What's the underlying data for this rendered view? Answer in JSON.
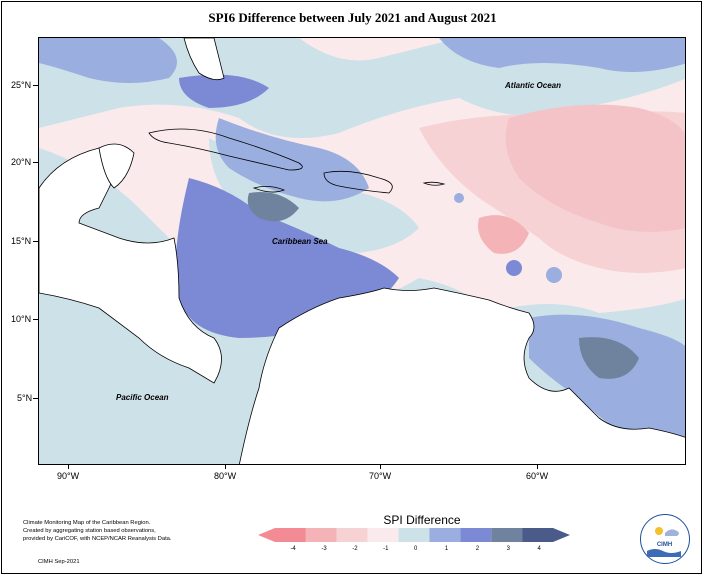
{
  "title": "SPI6 Difference between July 2021 and August 2021",
  "y_ticks": [
    "25°N",
    "20°N",
    "15°N",
    "10°N",
    "5°N"
  ],
  "x_ticks": [
    "90°W",
    "80°W",
    "70°W",
    "60°W"
  ],
  "labels": {
    "atlantic": "Atlantic Ocean",
    "caribbean": "Caribbean Sea",
    "pacific": "Pacific Ocean"
  },
  "footer": {
    "line1": "Climate Monitoring Map of the Caribbean Region.",
    "line2": "Created by aggregating station based observations,",
    "line3": "provided by CariCOF, with NCEP/NCAR Reanalysis Data.",
    "credit": "CIMH Sep-2021"
  },
  "legend": {
    "title": "SPI Difference",
    "ticks": [
      "-4",
      "-3",
      "-2",
      "-1",
      "0",
      "1",
      "2",
      "3",
      "4"
    ],
    "colors": [
      "#f28b93",
      "#f4b3b7",
      "#f6d2d5",
      "#fbeaec",
      "#cde1e8",
      "#9aaee0",
      "#7c89d4",
      "#6f839e",
      "#4a5b8a"
    ]
  },
  "logo": {
    "text": "CIMH"
  }
}
